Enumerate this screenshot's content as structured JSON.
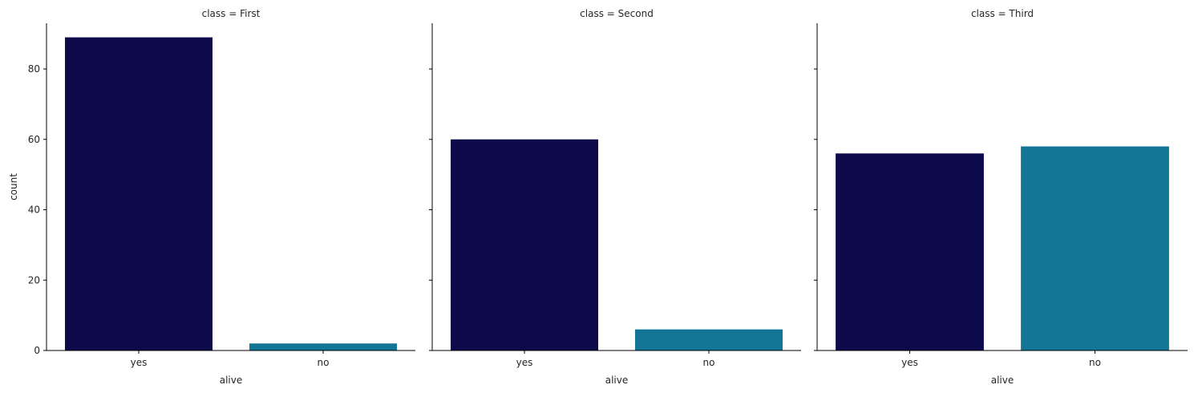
{
  "chart_data": {
    "type": "bar",
    "layout": "facet-grid",
    "categories": [
      "yes",
      "no"
    ],
    "category_colors": [
      "#0c0a4a",
      "#137697"
    ],
    "xlabel": "alive",
    "ylabel": "count",
    "ylim": [
      0,
      93
    ],
    "yticks": [
      0,
      20,
      40,
      60,
      80
    ],
    "shared_y": true,
    "grid": false,
    "facets": [
      {
        "title": "class = First",
        "values": [
          89,
          2
        ]
      },
      {
        "title": "class = Second",
        "values": [
          60,
          6
        ]
      },
      {
        "title": "class = Third",
        "values": [
          56,
          58
        ]
      }
    ]
  }
}
